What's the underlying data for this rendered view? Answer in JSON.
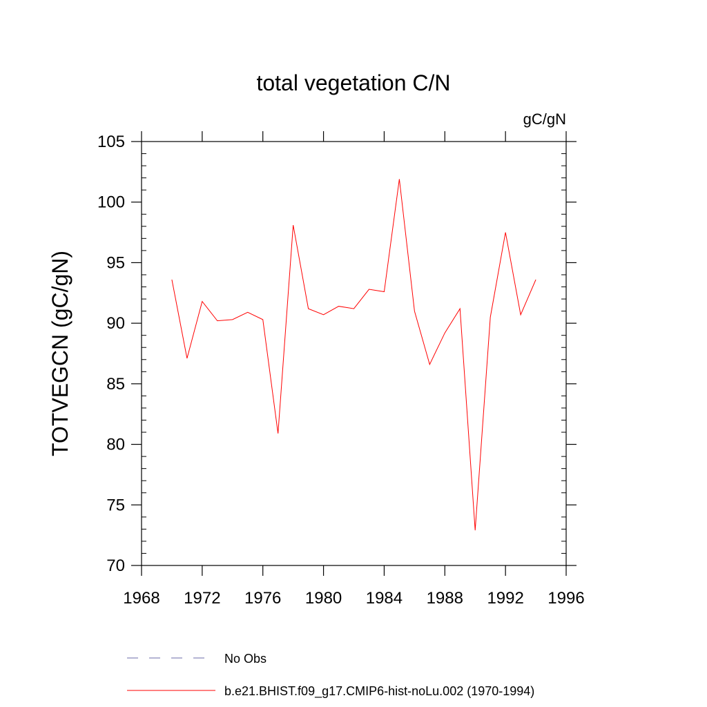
{
  "chart_data": {
    "type": "line",
    "title": "total vegetation C/N",
    "units_label": "gC/gN",
    "xlabel": "",
    "ylabel": "TOTVEGCN  (gC/gN)",
    "xlim": [
      1968,
      1996
    ],
    "ylim": [
      70,
      105
    ],
    "x_major_ticks": [
      1968,
      1972,
      1976,
      1980,
      1984,
      1988,
      1992,
      1996
    ],
    "y_major_ticks": [
      70,
      75,
      80,
      85,
      90,
      95,
      100,
      105
    ],
    "y_minor_step": 1,
    "grid": false,
    "legend_position": "bottom",
    "series": [
      {
        "name": "b.e21.BHIST.f09_g17.CMIP6-hist-noLu.002 (1970-1994)",
        "color": "#ff0000",
        "dash": "solid",
        "x": [
          1970,
          1971,
          1972,
          1973,
          1974,
          1975,
          1976,
          1977,
          1978,
          1979,
          1980,
          1981,
          1982,
          1983,
          1984,
          1985,
          1986,
          1987,
          1988,
          1989,
          1990,
          1991,
          1992,
          1993,
          1994
        ],
        "values": [
          93.6,
          87.1,
          91.8,
          90.2,
          90.3,
          90.9,
          90.3,
          80.9,
          98.1,
          91.2,
          90.7,
          91.4,
          91.2,
          92.8,
          92.6,
          101.9,
          91.0,
          86.6,
          89.2,
          91.2,
          72.9,
          90.5,
          97.5,
          90.7,
          93.6
        ]
      }
    ],
    "legend": [
      {
        "label": "No Obs",
        "color": "#6a6aa8",
        "dash": "dashed"
      },
      {
        "label": "b.e21.BHIST.f09_g17.CMIP6-hist-noLu.002 (1970-1994)",
        "color": "#ff0000",
        "dash": "solid"
      }
    ]
  }
}
